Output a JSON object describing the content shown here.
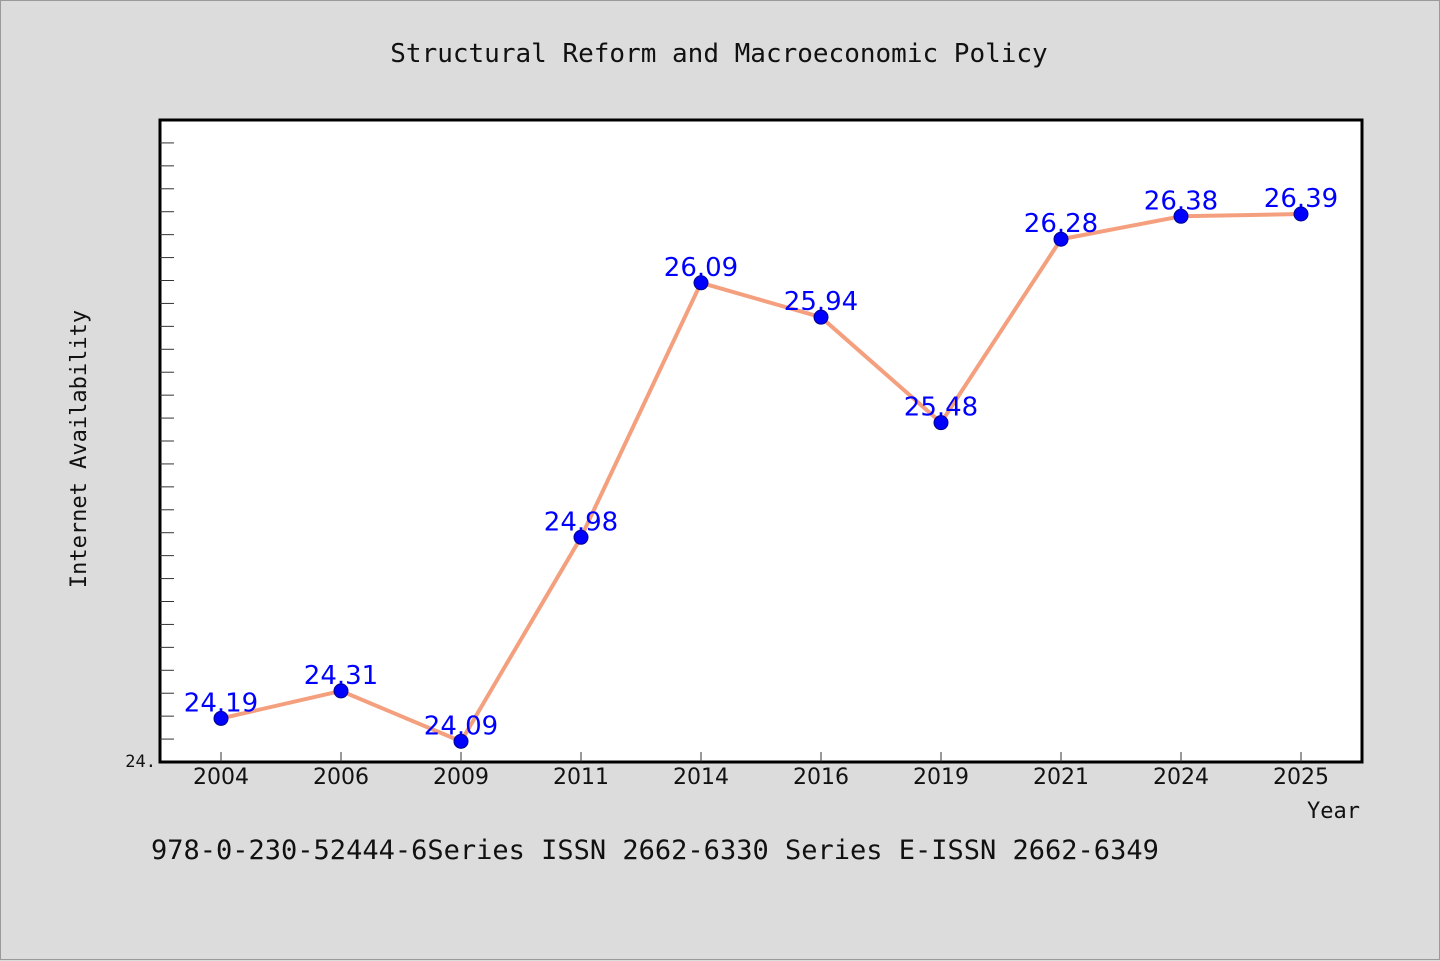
{
  "chart_data": {
    "type": "line",
    "title": "Structural Reform and Macroeconomic Policy",
    "xlabel": "Year",
    "ylabel": "Internet Availability",
    "categories": [
      "2004",
      "2006",
      "2009",
      "2011",
      "2014",
      "2016",
      "2019",
      "2021",
      "2024",
      "2025"
    ],
    "values": [
      24.19,
      24.31,
      24.09,
      24.98,
      26.09,
      25.94,
      25.48,
      26.28,
      26.38,
      26.39
    ],
    "data_labels": [
      "24.19",
      "24.31",
      "24.09",
      "24.98",
      "26.09",
      "25.94",
      "25.48",
      "26.28",
      "26.38",
      "26.39"
    ],
    "y_tick_label": "24.",
    "ylim": [
      24.0,
      26.8
    ],
    "grid": false,
    "legend": "none",
    "colors": {
      "line": "#f4a07e",
      "marker": "#0000ff",
      "label": "#0000ff",
      "frame": "#000000",
      "plot_bg": "#ffffff",
      "page_bg": "#dcdcdc"
    }
  },
  "footer": {
    "text": "978-0-230-52444-6Series ISSN 2662-6330 Series E-ISSN 2662-6349"
  }
}
